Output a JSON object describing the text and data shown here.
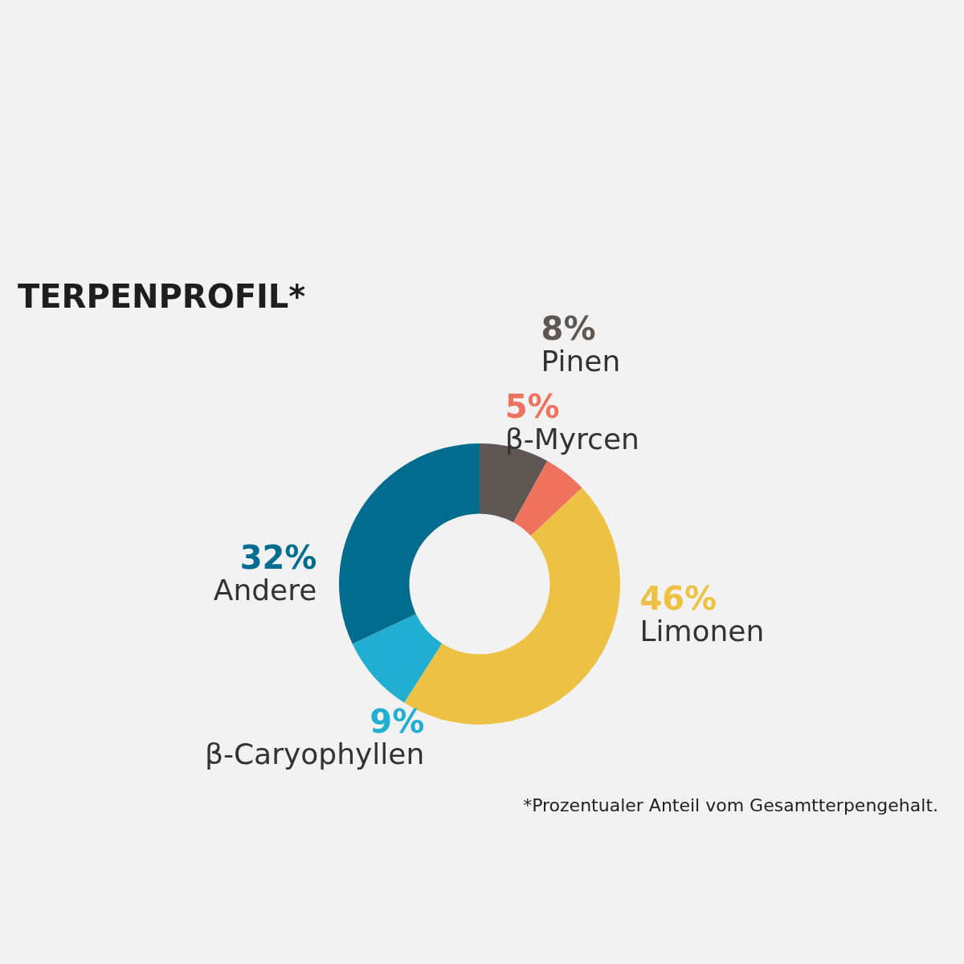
{
  "chart_data": {
    "type": "donut",
    "title": "TERPENPROFIL*",
    "categories": [
      "Pinen",
      "β-Myrcen",
      "Limonen",
      "β-Caryophyllen",
      "Andere"
    ],
    "values": [
      8,
      5,
      46,
      9,
      32
    ],
    "value_labels": [
      "8%",
      "5%",
      "46%",
      "9%",
      "32%"
    ],
    "colors": [
      "#5f5753",
      "#ee735f",
      "#edc143",
      "#22aed1",
      "#006d8f"
    ],
    "legend": false,
    "annotations": [
      "*Prozentualer Anteil vom Gesamtterpengehalt."
    ]
  }
}
